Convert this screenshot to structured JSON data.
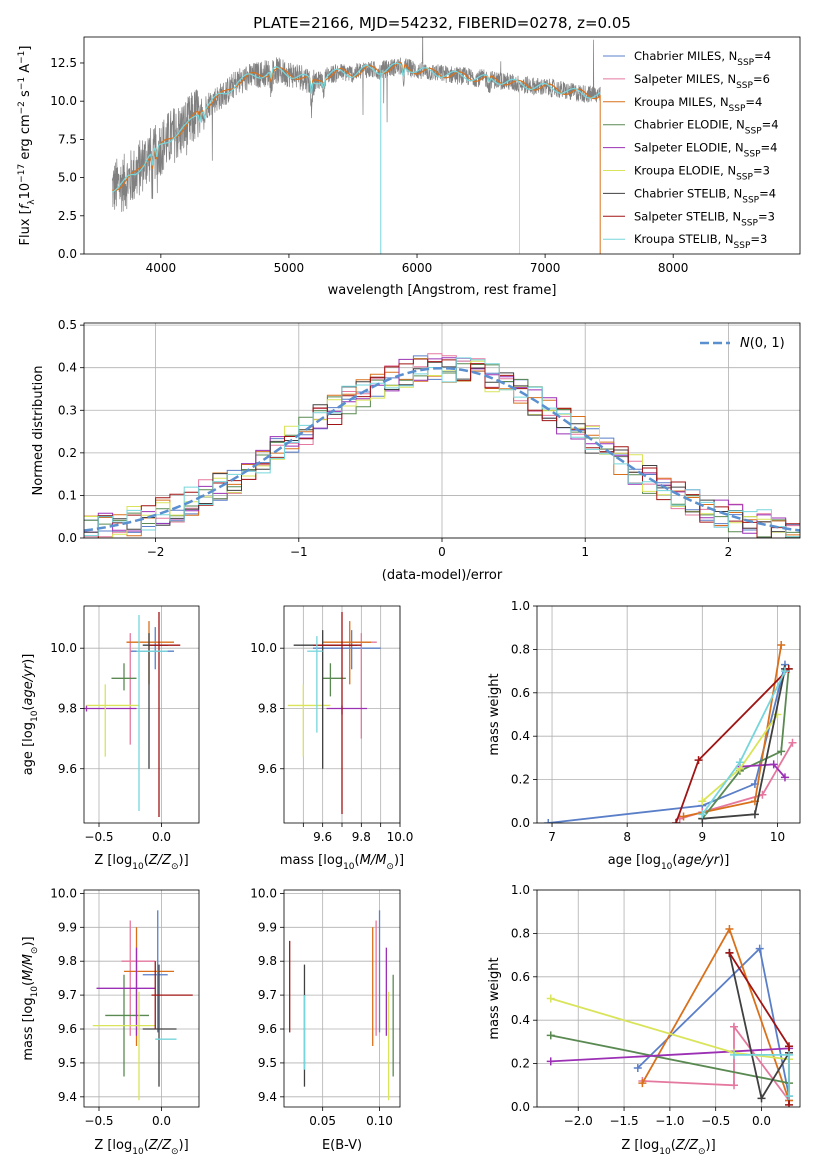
{
  "chart_data": [
    {
      "id": "spectrum",
      "type": "line",
      "title": "PLATE=2166, MJD=54232, FIBERID=0278, z=0.05",
      "xlabel": "wavelength [Angstrom, rest frame]",
      "ylabel": "Flux [f$_\\lambda$10$^{-17}$ erg cm$^{-2}$ s$^{-1}$ A$^{-1}$]",
      "ylabel_parts": [
        "Flux [",
        "f",
        "λ",
        "10",
        "−17",
        " erg cm",
        "−2",
        " s",
        "−1",
        " A",
        "−1",
        "]"
      ],
      "xlim": [
        3400,
        8990
      ],
      "ylim": [
        0,
        14.2
      ],
      "xticks": [
        4000,
        5000,
        6000,
        7000,
        8000
      ],
      "yticks": [
        0.0,
        2.5,
        5.0,
        7.5,
        10.0,
        12.5
      ],
      "grid": false,
      "legend_loc": "upper right",
      "legend": [
        {
          "model": "Chabrier MILES, N",
          "n": "4",
          "color": "#5a7fc8"
        },
        {
          "model": "Salpeter MILES, N",
          "n": "6",
          "color": "#e5789f"
        },
        {
          "model": "Kroupa MILES, N",
          "n": "4",
          "color": "#d9711c"
        },
        {
          "model": "Chabrier ELODIE, N",
          "n": "4",
          "color": "#5a8a52"
        },
        {
          "model": "Salpeter ELODIE, N",
          "n": "4",
          "color": "#9b30b5"
        },
        {
          "model": "Kroupa ELODIE, N",
          "n": "3",
          "color": "#d9e45a"
        },
        {
          "model": "Chabrier STELIB, N",
          "n": "4",
          "color": "#404040"
        },
        {
          "model": "Salpeter STELIB, N",
          "n": "3",
          "color": "#a01414"
        },
        {
          "model": "Kroupa STELIB, N",
          "n": "3",
          "color": "#76d6dc"
        }
      ],
      "legend_sub": "SSP",
      "data_color": "#808080",
      "model_color": "#76d6dc",
      "continuum": [
        [
          3620,
          4.3
        ],
        [
          3700,
          4.6
        ],
        [
          3800,
          5.2
        ],
        [
          3900,
          6.4
        ],
        [
          4000,
          7.0
        ],
        [
          4100,
          7.8
        ],
        [
          4200,
          8.3
        ],
        [
          4300,
          9.4
        ],
        [
          4400,
          10.0
        ],
        [
          4500,
          10.5
        ],
        [
          4600,
          11.3
        ],
        [
          4700,
          11.6
        ],
        [
          4800,
          11.8
        ],
        [
          4900,
          12.0
        ],
        [
          5000,
          11.8
        ],
        [
          5100,
          11.6
        ],
        [
          5200,
          11.2
        ],
        [
          5300,
          11.7
        ],
        [
          5400,
          11.9
        ],
        [
          5500,
          11.8
        ],
        [
          5600,
          12.1
        ],
        [
          5700,
          12.0
        ],
        [
          5800,
          12.2
        ],
        [
          5900,
          12.3
        ],
        [
          6000,
          12.0
        ],
        [
          6100,
          11.9
        ],
        [
          6200,
          11.8
        ],
        [
          6300,
          11.7
        ],
        [
          6400,
          11.6
        ],
        [
          6500,
          11.5
        ],
        [
          6600,
          11.4
        ],
        [
          6700,
          11.3
        ],
        [
          6800,
          11.1
        ],
        [
          6900,
          11.0
        ],
        [
          7000,
          10.9
        ],
        [
          7100,
          10.8
        ],
        [
          7200,
          10.6
        ],
        [
          7300,
          10.5
        ],
        [
          7400,
          10.4
        ],
        [
          7430,
          10.4
        ]
      ],
      "absorption": [
        [
          3934,
          1.6
        ],
        [
          3969,
          1.2
        ],
        [
          4304,
          1.0
        ],
        [
          4340,
          0.8
        ],
        [
          4861,
          0.9
        ],
        [
          5175,
          1.6
        ],
        [
          5270,
          0.9
        ],
        [
          5892,
          1.2
        ],
        [
          6563,
          0.6
        ]
      ],
      "dropouts": [
        [
          5717,
          0
        ],
        [
          6800,
          0
        ],
        [
          7430,
          0
        ]
      ]
    },
    {
      "id": "residuals",
      "type": "histogram",
      "xlabel": "(data-model)/error",
      "ylabel": "Normed distribution",
      "xlim": [
        -2.5,
        2.5
      ],
      "ylim": [
        0,
        0.505
      ],
      "xticks": [
        -2,
        -1,
        0,
        1,
        2
      ],
      "yticks": [
        0.0,
        0.1,
        0.2,
        0.3,
        0.4,
        0.5
      ],
      "grid": true,
      "legend_loc": "upper right",
      "legend": [
        {
          "label": "N(0, 1)",
          "color": "#5a8fd0",
          "style": "dashed"
        }
      ],
      "bin_width": 0.1,
      "series_colors": [
        "#5a7fc8",
        "#e5789f",
        "#d9711c",
        "#5a8a52",
        "#9b30b5",
        "#d9e45a",
        "#404040",
        "#a01414",
        "#76d6dc"
      ]
    },
    {
      "id": "age-z",
      "type": "errorbar",
      "xlabel": "Z [log10(Z/Z⊙)]",
      "ylabel": "age  [log10(age/yr)]",
      "xlim": [
        -0.62,
        0.3
      ],
      "ylim": [
        9.42,
        10.14
      ],
      "xticks": [
        -0.5,
        0.0
      ],
      "yticks": [
        9.6,
        9.8,
        10.0
      ],
      "grid": true,
      "points": [
        {
          "x": -0.05,
          "y": 9.99,
          "xlo": -0.25,
          "xhi": 0.1,
          "ylo": 9.93,
          "yhi": 10.07,
          "color": "#5a7fc8"
        },
        {
          "x": -0.25,
          "y": 10.02,
          "xlo": -0.28,
          "xhi": -0.24,
          "ylo": 9.68,
          "yhi": 10.05,
          "color": "#e5789f"
        },
        {
          "x": -0.1,
          "y": 10.02,
          "xlo": -0.28,
          "xhi": 0.1,
          "ylo": 9.88,
          "yhi": 10.09,
          "color": "#d9711c"
        },
        {
          "x": -0.3,
          "y": 9.9,
          "xlo": -0.4,
          "xhi": -0.2,
          "ylo": 9.86,
          "yhi": 9.95,
          "color": "#5a8a52"
        },
        {
          "x": -0.6,
          "y": 9.8,
          "xlo": -0.62,
          "xhi": -0.2,
          "ylo": 9.79,
          "yhi": 9.81,
          "color": "#9b30b5"
        },
        {
          "x": -0.45,
          "y": 9.81,
          "xlo": -0.6,
          "xhi": -0.18,
          "ylo": 9.64,
          "yhi": 9.88,
          "color": "#d9e45a"
        },
        {
          "x": -0.1,
          "y": 10.01,
          "xlo": -0.15,
          "xhi": 0.05,
          "ylo": 9.6,
          "yhi": 10.05,
          "color": "#404040"
        },
        {
          "x": -0.02,
          "y": 10.01,
          "xlo": -0.1,
          "xhi": 0.15,
          "ylo": 9.44,
          "yhi": 10.12,
          "color": "#a01414"
        },
        {
          "x": -0.18,
          "y": 9.99,
          "xlo": -0.2,
          "xhi": 0.05,
          "ylo": 9.46,
          "yhi": 10.11,
          "color": "#76d6dc"
        }
      ]
    },
    {
      "id": "age-mass",
      "type": "errorbar",
      "xlabel": "mass [log10(M/M⊙)]",
      "ylabel": "",
      "xlim": [
        9.4,
        10.0
      ],
      "ylim": [
        9.42,
        10.14
      ],
      "xticks": [
        9.5,
        9.6,
        9.7,
        9.8,
        9.9,
        10.0
      ],
      "xticklabels": [
        "9.6",
        "9.8",
        "10.0"
      ],
      "ytickvals": [
        9.6,
        9.8,
        10.0
      ],
      "grid": true,
      "points": [
        {
          "x": 9.75,
          "y": 10.0,
          "xlo": 9.55,
          "xhi": 9.9,
          "ylo": 9.93,
          "yhi": 10.06,
          "color": "#5a7fc8"
        },
        {
          "x": 9.8,
          "y": 10.02,
          "xlo": 9.7,
          "xhi": 9.88,
          "ylo": 9.7,
          "yhi": 10.05,
          "color": "#e5789f"
        },
        {
          "x": 9.74,
          "y": 10.02,
          "xlo": 9.6,
          "xhi": 9.85,
          "ylo": 9.88,
          "yhi": 10.09,
          "color": "#d9711c"
        },
        {
          "x": 9.64,
          "y": 9.9,
          "xlo": 9.6,
          "xhi": 9.72,
          "ylo": 9.84,
          "yhi": 9.95,
          "color": "#5a8a52"
        },
        {
          "x": 9.7,
          "y": 9.8,
          "xlo": 9.62,
          "xhi": 9.83,
          "ylo": 9.78,
          "yhi": 9.81,
          "color": "#9b30b5"
        },
        {
          "x": 9.5,
          "y": 9.81,
          "xlo": 9.42,
          "xhi": 9.64,
          "ylo": 9.64,
          "yhi": 9.88,
          "color": "#d9e45a"
        },
        {
          "x": 9.6,
          "y": 10.01,
          "xlo": 9.45,
          "xhi": 9.78,
          "ylo": 9.6,
          "yhi": 10.06,
          "color": "#404040"
        },
        {
          "x": 9.7,
          "y": 10.01,
          "xlo": 9.55,
          "xhi": 9.8,
          "ylo": 9.45,
          "yhi": 10.12,
          "color": "#a01414"
        },
        {
          "x": 9.57,
          "y": 9.99,
          "xlo": 9.52,
          "xhi": 9.6,
          "ylo": 9.72,
          "yhi": 10.04,
          "color": "#76d6dc"
        }
      ]
    },
    {
      "id": "weight-age",
      "type": "line",
      "xlabel": "age  [log10(age/yr)]",
      "ylabel": "mass weight",
      "xlim": [
        6.8,
        10.3
      ],
      "ylim": [
        0,
        1.0
      ],
      "xticks": [
        7,
        8,
        9,
        10
      ],
      "yticks": [
        0.0,
        0.2,
        0.4,
        0.6,
        0.8,
        1.0
      ],
      "grid": true,
      "series": [
        {
          "color": "#5a7fc8",
          "points": [
            [
              6.95,
              0.0
            ],
            [
              9.0,
              0.08
            ],
            [
              9.7,
              0.18
            ],
            [
              10.1,
              0.73
            ]
          ]
        },
        {
          "color": "#e5789f",
          "points": [
            [
              8.7,
              0.02
            ],
            [
              9.0,
              0.05
            ],
            [
              9.8,
              0.13
            ],
            [
              10.2,
              0.37
            ]
          ]
        },
        {
          "color": "#d9711c",
          "points": [
            [
              8.75,
              0.03
            ],
            [
              9.7,
              0.1
            ],
            [
              10.05,
              0.82
            ]
          ]
        },
        {
          "color": "#5a8a52",
          "points": [
            [
              9.0,
              0.02
            ],
            [
              9.5,
              0.24
            ],
            [
              10.05,
              0.33
            ],
            [
              10.15,
              0.71
            ]
          ]
        },
        {
          "color": "#9b30b5",
          "points": [
            [
              9.5,
              0.26
            ],
            [
              9.95,
              0.27
            ],
            [
              10.1,
              0.21
            ]
          ]
        },
        {
          "color": "#d9e45a",
          "points": [
            [
              9.0,
              0.1
            ],
            [
              9.5,
              0.25
            ],
            [
              10.0,
              0.5
            ]
          ]
        },
        {
          "color": "#404040",
          "points": [
            [
              9.0,
              0.02
            ],
            [
              9.7,
              0.04
            ],
            [
              10.1,
              0.71
            ]
          ]
        },
        {
          "color": "#a01414",
          "points": [
            [
              8.65,
              0.0
            ],
            [
              8.95,
              0.29
            ],
            [
              10.15,
              0.71
            ]
          ]
        },
        {
          "color": "#76d6dc",
          "points": [
            [
              9.0,
              0.04
            ],
            [
              9.5,
              0.28
            ],
            [
              10.1,
              0.7
            ]
          ]
        }
      ]
    },
    {
      "id": "mass-z",
      "type": "errorbar",
      "xlabel": "Z [log10(Z/Z⊙)]",
      "ylabel": "mass [log10(M/M⊙)]",
      "xlim": [
        -0.62,
        0.3
      ],
      "ylim": [
        9.37,
        10.01
      ],
      "xticks": [
        -0.5,
        0.0
      ],
      "yticks": [
        9.4,
        9.5,
        9.6,
        9.7,
        9.8,
        9.9,
        10.0
      ],
      "grid": true,
      "points": [
        {
          "x": -0.03,
          "y": 9.76,
          "xlo": -0.15,
          "xhi": 0.05,
          "ylo": 9.59,
          "yhi": 9.95,
          "color": "#5a7fc8"
        },
        {
          "x": -0.25,
          "y": 9.8,
          "xlo": -0.32,
          "xhi": -0.05,
          "ylo": 9.58,
          "yhi": 9.92,
          "color": "#e5789f"
        },
        {
          "x": -0.2,
          "y": 9.77,
          "xlo": -0.3,
          "xhi": 0.1,
          "ylo": 9.55,
          "yhi": 9.9,
          "color": "#d9711c"
        },
        {
          "x": -0.3,
          "y": 9.64,
          "xlo": -0.45,
          "xhi": -0.1,
          "ylo": 9.46,
          "yhi": 9.76,
          "color": "#5a8a52"
        },
        {
          "x": -0.2,
          "y": 9.72,
          "xlo": -0.52,
          "xhi": -0.05,
          "ylo": 9.58,
          "yhi": 9.84,
          "color": "#9b30b5"
        },
        {
          "x": -0.18,
          "y": 9.61,
          "xlo": -0.55,
          "xhi": -0.05,
          "ylo": 9.39,
          "yhi": 9.71,
          "color": "#d9e45a"
        },
        {
          "x": -0.02,
          "y": 9.6,
          "xlo": -0.15,
          "xhi": 0.12,
          "ylo": 9.43,
          "yhi": 9.79,
          "color": "#404040"
        },
        {
          "x": -0.05,
          "y": 9.7,
          "xlo": -0.08,
          "xhi": 0.25,
          "ylo": 9.6,
          "yhi": 9.8,
          "color": "#a01414"
        },
        {
          "x": 0.02,
          "y": 9.57,
          "xlo": -0.05,
          "xhi": 0.12,
          "ylo": 9.57,
          "yhi": 9.57,
          "color": "#76d6dc"
        }
      ]
    },
    {
      "id": "mass-ebv",
      "type": "errorbar",
      "xlabel": "E(B-V)",
      "ylabel": "",
      "xlim": [
        0.016,
        0.118
      ],
      "ylim": [
        9.37,
        10.01
      ],
      "xticks": [
        0.05,
        0.1
      ],
      "yticks": [
        9.4,
        9.5,
        9.6,
        9.7,
        9.8,
        9.9,
        10.0
      ],
      "grid": true,
      "points": [
        {
          "x": 0.1,
          "ylo": 9.59,
          "yhi": 9.95,
          "color": "#5a7fc8"
        },
        {
          "x": 0.097,
          "ylo": 9.58,
          "yhi": 9.92,
          "color": "#e5789f"
        },
        {
          "x": 0.094,
          "ylo": 9.55,
          "yhi": 9.9,
          "color": "#d9711c"
        },
        {
          "x": 0.112,
          "ylo": 9.46,
          "yhi": 9.76,
          "color": "#5a8a52"
        },
        {
          "x": 0.106,
          "ylo": 9.58,
          "yhi": 9.84,
          "color": "#9b30b5"
        },
        {
          "x": 0.108,
          "ylo": 9.39,
          "yhi": 9.71,
          "color": "#d9e45a"
        },
        {
          "x": 0.034,
          "ylo": 9.43,
          "yhi": 9.79,
          "color": "#404040"
        },
        {
          "x": 0.021,
          "ylo": 9.59,
          "yhi": 9.86,
          "color": "#a01414"
        },
        {
          "x": 0.034,
          "ylo": 9.48,
          "yhi": 9.7,
          "color": "#76d6dc"
        }
      ]
    },
    {
      "id": "weight-z",
      "type": "line",
      "xlabel": "Z [log10(Z/Z⊙)]",
      "ylabel": "mass weight",
      "xlim": [
        -2.45,
        0.42
      ],
      "ylim": [
        0,
        1.0
      ],
      "xticks": [
        -2.0,
        -1.5,
        -1.0,
        -0.5,
        0.0
      ],
      "yticks": [
        0.0,
        0.2,
        0.4,
        0.6,
        0.8,
        1.0
      ],
      "grid": true,
      "series": [
        {
          "color": "#5a7fc8",
          "points": [
            [
              -1.35,
              0.18
            ],
            [
              -0.02,
              0.73
            ],
            [
              0.3,
              0.05
            ]
          ]
        },
        {
          "color": "#e5789f",
          "points": [
            [
              -1.3,
              0.12
            ],
            [
              -0.3,
              0.1
            ],
            [
              -0.3,
              0.37
            ],
            [
              0.3,
              0.03
            ]
          ]
        },
        {
          "color": "#d9711c",
          "points": [
            [
              -1.3,
              0.11
            ],
            [
              -0.35,
              0.82
            ],
            [
              0.3,
              0.03
            ]
          ]
        },
        {
          "color": "#5a8a52",
          "points": [
            [
              -2.3,
              0.33
            ],
            [
              0.3,
              0.11
            ]
          ]
        },
        {
          "color": "#9b30b5",
          "points": [
            [
              -2.3,
              0.21
            ],
            [
              0.3,
              0.27
            ]
          ]
        },
        {
          "color": "#d9e45a",
          "points": [
            [
              -2.3,
              0.5
            ],
            [
              -0.3,
              0.25
            ],
            [
              0.3,
              0.22
            ]
          ]
        },
        {
          "color": "#404040",
          "points": [
            [
              -0.35,
              0.71
            ],
            [
              0.0,
              0.04
            ],
            [
              0.3,
              0.25
            ]
          ]
        },
        {
          "color": "#a01414",
          "points": [
            [
              -0.35,
              0.71
            ],
            [
              0.3,
              0.28
            ],
            [
              0.3,
              0.01
            ]
          ]
        },
        {
          "color": "#76d6dc",
          "points": [
            [
              -0.3,
              0.24
            ],
            [
              0.3,
              0.24
            ],
            [
              0.3,
              0.05
            ]
          ]
        }
      ]
    }
  ]
}
